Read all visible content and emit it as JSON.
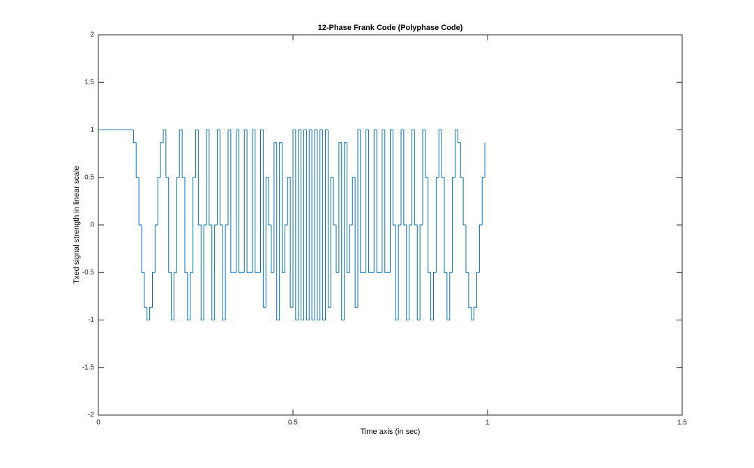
{
  "chart_data": {
    "type": "stairs",
    "title": "12-Phase Frank Code (Polyphase Code)",
    "x_label": "Time axis (in sec)",
    "y_label": "Txed signal strength in linear scale",
    "xlim": [
      0,
      1.5
    ],
    "xticks": [
      0,
      0.5,
      1,
      1.5
    ],
    "ylim": [
      -2,
      2
    ],
    "yticks": [
      -2,
      -1.5,
      -1,
      -0.5,
      0,
      0.5,
      1,
      1.5,
      2
    ],
    "color": "#0072bd",
    "x": [
      0,
      0.0069,
      0.0139,
      0.0208,
      0.0278,
      0.0347,
      0.0417,
      0.0486,
      0.0556,
      0.0625,
      0.0694,
      0.0764,
      0.0833,
      0.0903,
      0.0972,
      0.1042,
      0.1111,
      0.1181,
      0.125,
      0.1319,
      0.1389,
      0.1458,
      0.1528,
      0.1597,
      0.1667,
      0.1736,
      0.1806,
      0.1875,
      0.1944,
      0.2014,
      0.2083,
      0.2153,
      0.2222,
      0.2292,
      0.2361,
      0.2431,
      0.25,
      0.2569,
      0.2639,
      0.2708,
      0.2778,
      0.2847,
      0.2917,
      0.2986,
      0.3056,
      0.3125,
      0.3194,
      0.3264,
      0.3333,
      0.3403,
      0.3472,
      0.3542,
      0.3611,
      0.3681,
      0.375,
      0.3819,
      0.3889,
      0.3958,
      0.4028,
      0.4097,
      0.4167,
      0.4236,
      0.4306,
      0.4375,
      0.4444,
      0.4514,
      0.4583,
      0.4653,
      0.4722,
      0.4792,
      0.4861,
      0.4931,
      0.5,
      0.5069,
      0.5139,
      0.5208,
      0.5278,
      0.5347,
      0.5417,
      0.5486,
      0.5556,
      0.5625,
      0.5694,
      0.5764,
      0.5833,
      0.5903,
      0.5972,
      0.6042,
      0.6111,
      0.6181,
      0.625,
      0.6319,
      0.6389,
      0.6458,
      0.6528,
      0.6597,
      0.6667,
      0.6736,
      0.6806,
      0.6875,
      0.6944,
      0.7014,
      0.7083,
      0.7153,
      0.7222,
      0.7292,
      0.7361,
      0.7431,
      0.75,
      0.7569,
      0.7639,
      0.7708,
      0.7778,
      0.7847,
      0.7917,
      0.7986,
      0.8056,
      0.8125,
      0.8194,
      0.8264,
      0.8333,
      0.8403,
      0.8472,
      0.8542,
      0.8611,
      0.8681,
      0.875,
      0.8819,
      0.8889,
      0.8958,
      0.9028,
      0.9097,
      0.9167,
      0.9236,
      0.9306,
      0.9375,
      0.9444,
      0.9514,
      0.9583,
      0.9653,
      0.9722,
      0.9792,
      0.9861,
      0.9931
    ],
    "values": [
      1,
      1,
      1,
      1,
      1,
      1,
      1,
      1,
      1,
      1,
      1,
      1,
      1,
      0.866,
      0.5,
      0,
      -0.5,
      -0.866,
      -1,
      -0.866,
      -0.5,
      0,
      0.5,
      0.866,
      1,
      0.5,
      -0.5,
      -1,
      -0.5,
      0.5,
      1,
      0.5,
      -0.5,
      -1,
      -0.5,
      0.5,
      1,
      0,
      -1,
      0,
      1,
      0,
      -1,
      0,
      1,
      0,
      -1,
      0,
      1,
      -0.5,
      -0.5,
      1,
      -0.5,
      -0.5,
      1,
      -0.5,
      -0.5,
      1,
      -0.5,
      -0.5,
      1,
      -0.866,
      0.5,
      0,
      -0.5,
      0.866,
      -1,
      0.866,
      -0.5,
      0,
      0.5,
      -0.866,
      1,
      -1,
      1,
      -1,
      1,
      -1,
      1,
      -1,
      1,
      -1,
      1,
      -1,
      1,
      -0.866,
      0.5,
      0,
      -0.5,
      0.866,
      -1,
      0.866,
      -0.5,
      0,
      0.5,
      -0.866,
      1,
      -0.5,
      -0.5,
      1,
      -0.5,
      -0.5,
      1,
      -0.5,
      -0.5,
      1,
      -0.5,
      -0.5,
      1,
      0,
      -1,
      0,
      1,
      0,
      -1,
      0,
      1,
      0,
      -1,
      0,
      1,
      0.5,
      -0.5,
      -1,
      -0.5,
      0.5,
      1,
      0.5,
      -0.5,
      -1,
      -0.5,
      0.5,
      1,
      0.866,
      0.5,
      0,
      -0.5,
      -0.866,
      -1,
      -0.866,
      -0.5,
      0,
      0.5,
      0.866
    ]
  }
}
